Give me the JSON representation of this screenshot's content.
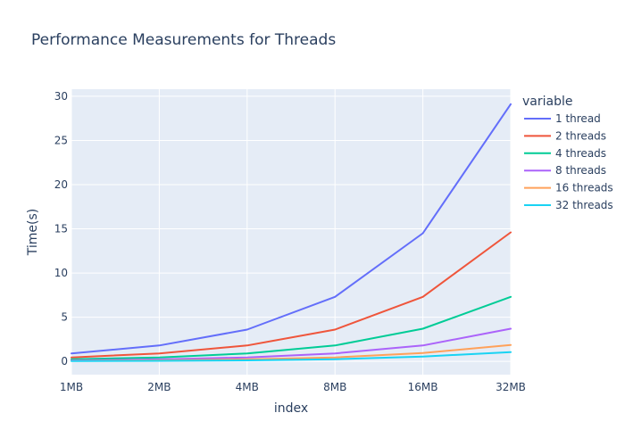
{
  "chart_data": {
    "type": "line",
    "title": "Performance Measurements for Threads",
    "xlabel": "index",
    "ylabel": "Time(s)",
    "categories": [
      "1MB",
      "2MB",
      "4MB",
      "8MB",
      "16MB",
      "32MB"
    ],
    "ylim": [
      -1.5,
      30.8
    ],
    "yticks": [
      0,
      5,
      10,
      15,
      20,
      25,
      30
    ],
    "grid": true,
    "legend": {
      "title": "variable",
      "placement": "right"
    },
    "series": [
      {
        "name": "1 thread",
        "color": "#636efa",
        "values": [
          0.9,
          1.8,
          3.6,
          7.3,
          14.5,
          29.1
        ]
      },
      {
        "name": "2 threads",
        "color": "#ef553b",
        "values": [
          0.45,
          0.9,
          1.8,
          3.6,
          7.3,
          14.6
        ]
      },
      {
        "name": "4 threads",
        "color": "#00cc96",
        "values": [
          0.25,
          0.45,
          0.9,
          1.8,
          3.7,
          7.3
        ]
      },
      {
        "name": "8 threads",
        "color": "#ab63fa",
        "values": [
          0.12,
          0.23,
          0.45,
          0.9,
          1.8,
          3.7
        ]
      },
      {
        "name": "16 threads",
        "color": "#ffa15a",
        "values": [
          0.06,
          0.12,
          0.23,
          0.45,
          0.95,
          1.85
        ]
      },
      {
        "name": "32 threads",
        "color": "#19d3f3",
        "values": [
          0.03,
          0.06,
          0.12,
          0.25,
          0.55,
          1.05
        ]
      }
    ]
  }
}
